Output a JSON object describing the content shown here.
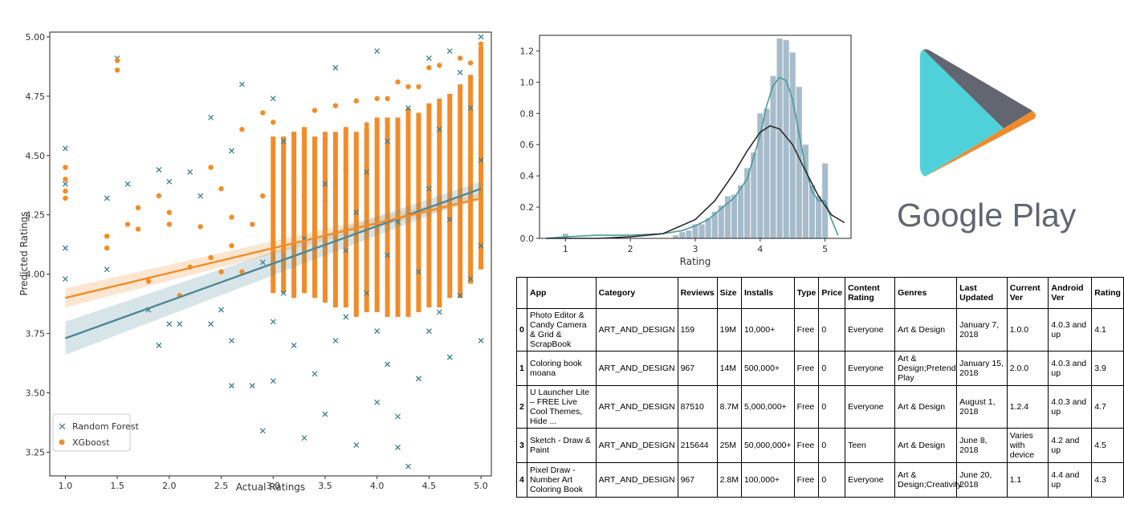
{
  "chart_data": [
    {
      "type": "scatter",
      "xlabel": "Actual Ratings",
      "ylabel": "Predicted Ratings",
      "xlim": [
        0.85,
        5.1
      ],
      "ylim": [
        3.15,
        5.02
      ],
      "xticks": [
        "1.0",
        "1.5",
        "2.0",
        "2.5",
        "3.0",
        "3.5",
        "4.0",
        "4.5",
        "5.0"
      ],
      "yticks": [
        "3.25",
        "3.50",
        "3.75",
        "4.00",
        "4.25",
        "4.50",
        "4.75",
        "5.00"
      ],
      "legend": {
        "position": "lower-left",
        "entries": [
          "Random Forest",
          "XGboost"
        ]
      },
      "series": [
        {
          "name": "Random Forest",
          "marker": "x",
          "color": "#3f7f8f",
          "points": [
            [
              1.0,
              4.53
            ],
            [
              1.0,
              4.11
            ],
            [
              1.0,
              3.98
            ],
            [
              1.0,
              4.38
            ],
            [
              1.4,
              4.32
            ],
            [
              1.5,
              4.91
            ],
            [
              1.4,
              4.02
            ],
            [
              1.6,
              4.38
            ],
            [
              1.8,
              3.85
            ],
            [
              1.9,
              4.44
            ],
            [
              1.9,
              3.7
            ],
            [
              2.0,
              4.39
            ],
            [
              2.0,
              3.79
            ],
            [
              2.1,
              3.79
            ],
            [
              2.2,
              4.43
            ],
            [
              2.3,
              4.33
            ],
            [
              2.4,
              4.66
            ],
            [
              2.4,
              3.79
            ],
            [
              2.5,
              3.85
            ],
            [
              2.6,
              3.53
            ],
            [
              2.6,
              4.52
            ],
            [
              2.6,
              3.72
            ],
            [
              2.7,
              4.8
            ],
            [
              2.8,
              3.53
            ],
            [
              2.9,
              3.34
            ],
            [
              2.9,
              4.05
            ],
            [
              3.0,
              4.74
            ],
            [
              3.0,
              3.8
            ],
            [
              3.0,
              3.55
            ],
            [
              3.1,
              4.56
            ],
            [
              3.1,
              3.92
            ],
            [
              3.2,
              3.7
            ],
            [
              3.3,
              3.31
            ],
            [
              3.3,
              4.15
            ],
            [
              3.4,
              3.58
            ],
            [
              3.5,
              3.41
            ],
            [
              3.5,
              4.38
            ],
            [
              3.6,
              4.87
            ],
            [
              3.6,
              3.72
            ],
            [
              3.7,
              3.82
            ],
            [
              3.7,
              4.1
            ],
            [
              3.8,
              3.28
            ],
            [
              3.8,
              4.26
            ],
            [
              3.9,
              4.43
            ],
            [
              3.9,
              3.92
            ],
            [
              4.0,
              3.46
            ],
            [
              4.0,
              4.94
            ],
            [
              4.0,
              3.76
            ],
            [
              4.1,
              4.56
            ],
            [
              4.1,
              3.62
            ],
            [
              4.1,
              4.08
            ],
            [
              4.2,
              3.27
            ],
            [
              4.2,
              3.4
            ],
            [
              4.2,
              4.22
            ],
            [
              4.3,
              3.19
            ],
            [
              4.3,
              4.7
            ],
            [
              4.4,
              3.56
            ],
            [
              4.4,
              4.01
            ],
            [
              4.5,
              4.91
            ],
            [
              4.5,
              3.76
            ],
            [
              4.5,
              4.36
            ],
            [
              4.6,
              3.84
            ],
            [
              4.6,
              4.61
            ],
            [
              4.7,
              4.94
            ],
            [
              4.7,
              3.65
            ],
            [
              4.7,
              4.23
            ],
            [
              4.8,
              4.85
            ],
            [
              4.8,
              3.91
            ],
            [
              4.9,
              4.7
            ],
            [
              4.9,
              3.98
            ],
            [
              5.0,
              5.0
            ],
            [
              5.0,
              3.72
            ],
            [
              5.0,
              4.12
            ],
            [
              5.0,
              4.48
            ]
          ]
        },
        {
          "name": "XGboost",
          "marker": "o",
          "color": "#f28c28",
          "points": [
            [
              1.0,
              4.45
            ],
            [
              1.0,
              4.4
            ],
            [
              1.0,
              4.35
            ],
            [
              1.0,
              4.32
            ],
            [
              1.4,
              4.16
            ],
            [
              1.4,
              4.11
            ],
            [
              1.5,
              4.86
            ],
            [
              1.5,
              4.9
            ],
            [
              1.6,
              4.21
            ],
            [
              1.7,
              4.28
            ],
            [
              1.7,
              4.19
            ],
            [
              1.8,
              3.97
            ],
            [
              1.9,
              4.33
            ],
            [
              2.0,
              4.26
            ],
            [
              2.0,
              4.21
            ],
            [
              2.1,
              3.91
            ],
            [
              2.2,
              4.03
            ],
            [
              2.3,
              4.2
            ],
            [
              2.4,
              4.45
            ],
            [
              2.4,
              4.07
            ],
            [
              2.5,
              4.36
            ],
            [
              2.5,
              4.01
            ],
            [
              2.6,
              4.12
            ],
            [
              2.6,
              4.24
            ],
            [
              2.7,
              4.01
            ],
            [
              2.7,
              4.61
            ],
            [
              2.8,
              4.21
            ],
            [
              2.9,
              4.68
            ],
            [
              2.9,
              4.33
            ],
            [
              3.0,
              4.64
            ],
            [
              3.0,
              3.97
            ],
            [
              3.1,
              4.1
            ],
            [
              3.2,
              4.59
            ],
            [
              3.2,
              4.41
            ],
            [
              3.3,
              4.33
            ],
            [
              3.3,
              3.94
            ],
            [
              3.4,
              4.69
            ],
            [
              3.5,
              4.31
            ],
            [
              3.5,
              4.57
            ],
            [
              3.6,
              4.71
            ],
            [
              3.7,
              4.44
            ],
            [
              3.8,
              4.73
            ],
            [
              3.9,
              4.63
            ],
            [
              4.0,
              4.74
            ],
            [
              4.1,
              4.74
            ],
            [
              4.2,
              4.81
            ],
            [
              4.3,
              4.79
            ],
            [
              4.4,
              4.79
            ],
            [
              4.5,
              4.87
            ],
            [
              4.6,
              4.88
            ],
            [
              4.8,
              4.91
            ],
            [
              4.9,
              4.89
            ],
            [
              5.0,
              4.97
            ]
          ]
        }
      ],
      "fit_lines": [
        {
          "name": "Random Forest",
          "color": "#4f8797",
          "x": [
            1.0,
            5.0
          ],
          "y": [
            3.73,
            4.36
          ],
          "ci_low": [
            3.66,
            4.33
          ],
          "ci_high": [
            3.8,
            4.39
          ]
        },
        {
          "name": "XGboost",
          "color": "#f28c28",
          "x": [
            1.0,
            5.0
          ],
          "y": [
            3.9,
            4.32
          ],
          "ci_low": [
            3.86,
            4.31
          ],
          "ci_high": [
            3.94,
            4.34
          ]
        }
      ],
      "vertical_bands": [
        {
          "x": 3.0,
          "low": 3.92,
          "high": 4.58
        },
        {
          "x": 3.1,
          "low": 3.92,
          "high": 4.58
        },
        {
          "x": 3.2,
          "low": 3.9,
          "high": 4.6
        },
        {
          "x": 3.3,
          "low": 3.92,
          "high": 4.62
        },
        {
          "x": 3.4,
          "low": 3.9,
          "high": 4.58
        },
        {
          "x": 3.5,
          "low": 3.88,
          "high": 4.6
        },
        {
          "x": 3.6,
          "low": 3.86,
          "high": 4.6
        },
        {
          "x": 3.7,
          "low": 3.86,
          "high": 4.62
        },
        {
          "x": 3.8,
          "low": 3.82,
          "high": 4.6
        },
        {
          "x": 3.9,
          "low": 3.84,
          "high": 4.62
        },
        {
          "x": 4.0,
          "low": 3.84,
          "high": 4.66
        },
        {
          "x": 4.1,
          "low": 3.82,
          "high": 4.66
        },
        {
          "x": 4.2,
          "low": 3.82,
          "high": 4.66
        },
        {
          "x": 4.3,
          "low": 3.82,
          "high": 4.7
        },
        {
          "x": 4.4,
          "low": 3.84,
          "high": 4.68
        },
        {
          "x": 4.5,
          "low": 3.86,
          "high": 4.72
        },
        {
          "x": 4.6,
          "low": 3.86,
          "high": 4.74
        },
        {
          "x": 4.7,
          "low": 3.9,
          "high": 4.76
        },
        {
          "x": 4.8,
          "low": 3.9,
          "high": 4.8
        },
        {
          "x": 4.9,
          "low": 3.96,
          "high": 4.84
        },
        {
          "x": 5.0,
          "low": 4.02,
          "high": 4.96
        }
      ]
    },
    {
      "type": "bar",
      "subtype": "histogram-with-kde",
      "xlabel": "Rating",
      "ylabel": "",
      "xlim": [
        0.6,
        5.4
      ],
      "ylim": [
        0,
        1.3
      ],
      "xticks": [
        "1",
        "2",
        "3",
        "4",
        "5"
      ],
      "yticks": [
        "0.0",
        "0.2",
        "0.4",
        "0.6",
        "0.8",
        "1.0",
        "1.2"
      ],
      "bar_color": "#a7bccb",
      "bins": [
        [
          1.0,
          0.03
        ],
        [
          2.7,
          0.02
        ],
        [
          2.8,
          0.04
        ],
        [
          2.9,
          0.05
        ],
        [
          3.0,
          0.09
        ],
        [
          3.1,
          0.09
        ],
        [
          3.2,
          0.13
        ],
        [
          3.3,
          0.17
        ],
        [
          3.4,
          0.21
        ],
        [
          3.5,
          0.27
        ],
        [
          3.6,
          0.28
        ],
        [
          3.7,
          0.34
        ],
        [
          3.8,
          0.45
        ],
        [
          3.9,
          0.55
        ],
        [
          4.0,
          0.8
        ],
        [
          4.1,
          0.83
        ],
        [
          4.2,
          1.04
        ],
        [
          4.3,
          1.28
        ],
        [
          4.4,
          1.27
        ],
        [
          4.5,
          1.19
        ],
        [
          4.6,
          0.97
        ],
        [
          4.7,
          0.6
        ],
        [
          4.8,
          0.34
        ],
        [
          4.9,
          0.27
        ],
        [
          5.0,
          0.48
        ]
      ],
      "curves": [
        {
          "name": "kde",
          "color": "#4a9a9a",
          "x": [
            0.7,
            1.0,
            1.5,
            2.0,
            2.5,
            2.8,
            3.0,
            3.2,
            3.4,
            3.6,
            3.8,
            4.0,
            4.1,
            4.2,
            4.3,
            4.4,
            4.5,
            4.6,
            4.7,
            4.8,
            4.9,
            5.0,
            5.1,
            5.2
          ],
          "y": [
            0.0,
            0.01,
            0.02,
            0.02,
            0.03,
            0.05,
            0.08,
            0.12,
            0.19,
            0.26,
            0.38,
            0.66,
            0.85,
            0.98,
            1.03,
            1.01,
            0.89,
            0.67,
            0.45,
            0.3,
            0.24,
            0.24,
            0.12,
            0.02
          ]
        },
        {
          "name": "normal-fit",
          "color": "#2a2a2a",
          "x": [
            0.7,
            1.0,
            1.5,
            2.0,
            2.5,
            3.0,
            3.3,
            3.6,
            3.8,
            4.0,
            4.15,
            4.3,
            4.5,
            4.7,
            4.9,
            5.1,
            5.3
          ],
          "y": [
            0.0,
            0.0,
            0.0,
            0.01,
            0.03,
            0.12,
            0.24,
            0.42,
            0.56,
            0.68,
            0.72,
            0.7,
            0.6,
            0.43,
            0.27,
            0.15,
            0.1
          ]
        }
      ]
    },
    {
      "type": "table",
      "columns": [
        "",
        "App",
        "Category",
        "Reviews",
        "Size",
        "Installs",
        "Type",
        "Price",
        "Content Rating",
        "Genres",
        "Last Updated",
        "Current Ver",
        "Android Ver",
        "Rating"
      ],
      "rows": [
        [
          "0",
          "Photo Editor & Candy Camera & Grid & ScrapBook",
          "ART_AND_DESIGN",
          "159",
          "19M",
          "10,000+",
          "Free",
          "0",
          "Everyone",
          "Art & Design",
          "January 7, 2018",
          "1.0.0",
          "4.0.3 and up",
          "4.1"
        ],
        [
          "1",
          "Coloring book moana",
          "ART_AND_DESIGN",
          "967",
          "14M",
          "500,000+",
          "Free",
          "0",
          "Everyone",
          "Art & Design;Pretend Play",
          "January 15, 2018",
          "2.0.0",
          "4.0.3 and up",
          "3.9"
        ],
        [
          "2",
          "U Launcher Lite – FREE Live Cool Themes, Hide ...",
          "ART_AND_DESIGN",
          "87510",
          "8.7M",
          "5,000,000+",
          "Free",
          "0",
          "Everyone",
          "Art & Design",
          "August 1, 2018",
          "1.2.4",
          "4.0.3 and up",
          "4.7"
        ],
        [
          "3",
          "Sketch - Draw & Paint",
          "ART_AND_DESIGN",
          "215644",
          "25M",
          "50,000,000+",
          "Free",
          "0",
          "Teen",
          "Art & Design",
          "June 8, 2018",
          "Varies with device",
          "4.2 and up",
          "4.5"
        ],
        [
          "4",
          "Pixel Draw - Number Art Coloring Book",
          "ART_AND_DESIGN",
          "967",
          "2.8M",
          "100,000+",
          "Free",
          "0",
          "Everyone",
          "Art & Design;Creativity",
          "June 20, 2018",
          "1.1",
          "4.4 and up",
          "4.3"
        ]
      ]
    }
  ],
  "logo": {
    "text": "Google Play",
    "icon": "google-play-triangle-icon",
    "colors": {
      "teal": "#4fd1d9",
      "orange": "#f08a2c",
      "gray": "#616670"
    }
  }
}
